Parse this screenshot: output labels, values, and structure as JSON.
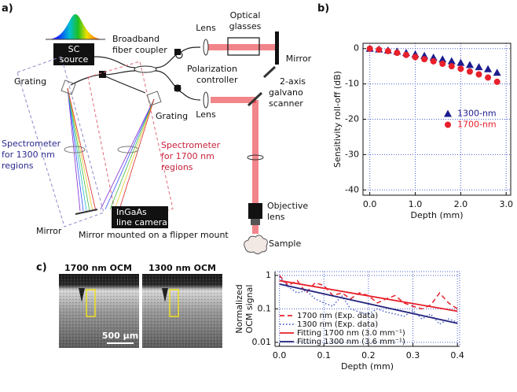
{
  "panels": [
    "a)",
    "b)",
    "c)"
  ],
  "diagram": {
    "sc_source": [
      "SC",
      "source"
    ],
    "coupler": [
      "Broadband",
      "fiber coupler"
    ],
    "lens_top": "Lens",
    "optical_glasses": [
      "Optical",
      "glasses"
    ],
    "mirror_ref": "Mirror",
    "polarization": [
      "Polarization",
      "controller"
    ],
    "lens_bottom": "Lens",
    "galvano": [
      "2-axis",
      "galvano",
      "scanner"
    ],
    "grating_left": "Grating",
    "grating_right": "Grating",
    "spec_1300": [
      "Spectrometer",
      "for 1300 nm",
      "regions"
    ],
    "spec_1700": [
      "Spectrometer",
      "for 1700 nm",
      "regions"
    ],
    "objective": [
      "Objective",
      "lens"
    ],
    "sample": "Sample",
    "camera": [
      "InGaAs",
      "line camera"
    ],
    "mirror_flip": "Mirror",
    "flipper": "Mirror mounted on a flipper mount"
  },
  "images": {
    "labels": [
      "1700 nm OCM",
      "1300 nm OCM"
    ],
    "scale_bar": "500 µm"
  },
  "chart_data": [
    {
      "type": "scatter",
      "xlabel": "Depth (mm)",
      "ylabel": "Sensitivity roll-off (dB)",
      "x": [
        0,
        0.2,
        0.4,
        0.6,
        0.8,
        1.0,
        1.2,
        1.4,
        1.6,
        1.8,
        2.0,
        2.2,
        2.4,
        2.6,
        2.8
      ],
      "series": [
        {
          "name": "1300-nm",
          "color": "#1c1c8e",
          "marker": "triangle",
          "values": [
            0,
            -0.2,
            -0.5,
            -0.8,
            -1.2,
            -1.6,
            -2,
            -2.5,
            -3,
            -3.5,
            -4,
            -4.6,
            -5.2,
            -5.8,
            -6.8
          ]
        },
        {
          "name": "1700-nm",
          "color": "#e8202a",
          "marker": "circle",
          "values": [
            0,
            -0.3,
            -0.7,
            -1.2,
            -1.8,
            -2.4,
            -3,
            -3.6,
            -4.3,
            -5,
            -5.7,
            -6.5,
            -7.3,
            -8.2,
            -9.4
          ]
        }
      ],
      "xlim": [
        -0.15,
        3.1
      ],
      "ylim": [
        -41.5,
        1.5
      ],
      "xticks": [
        {
          "value": 0,
          "label": "0.0"
        },
        {
          "value": 1,
          "label": "1.0"
        },
        {
          "value": 2,
          "label": "2.0"
        },
        {
          "value": 3,
          "label": "3.0"
        }
      ],
      "yticks": [
        0,
        -10,
        -20,
        -30,
        -40
      ],
      "grid": true,
      "legend": "center right"
    },
    {
      "type": "line",
      "xlabel": "Depth (mm)",
      "ylabel": [
        "Normalized",
        "OCM signal"
      ],
      "x": [
        0,
        0.02,
        0.04,
        0.06,
        0.08,
        0.1,
        0.12,
        0.14,
        0.16,
        0.18,
        0.2,
        0.22,
        0.24,
        0.26,
        0.28,
        0.3,
        0.32,
        0.34,
        0.36,
        0.38,
        0.4
      ],
      "series": [
        {
          "name": "1700 nm (Exp. data)",
          "color": "#e8202a",
          "dash": "dashed",
          "values": [
            1.0,
            0.5,
            0.7,
            0.3,
            0.6,
            0.5,
            0.25,
            0.3,
            0.2,
            0.3,
            0.25,
            0.15,
            0.2,
            0.25,
            0.15,
            0.12,
            0.1,
            0.13,
            0.3,
            0.15,
            0.1
          ]
        },
        {
          "name": "1300 nm (Exp. data)",
          "color": "#4a5fc8",
          "dash": "dotted",
          "values": [
            0.9,
            0.45,
            0.3,
            0.35,
            0.2,
            0.15,
            0.12,
            0.25,
            0.1,
            0.08,
            0.07,
            0.1,
            0.08,
            0.07,
            0.06,
            0.09,
            0.05,
            0.07,
            0.035,
            0.05,
            0.04
          ]
        },
        {
          "name": "Fitting 1700 nm (3.0 mm⁻¹)",
          "color": "#e8202a",
          "dash": "solid",
          "x": [
            0,
            0.4
          ],
          "values": [
            0.7,
            0.085
          ]
        },
        {
          "name": "Fitting 1300 nm (3.6 mm⁻¹)",
          "color": "#23237e",
          "dash": "solid",
          "x": [
            0,
            0.4
          ],
          "values": [
            0.55,
            0.037
          ]
        }
      ],
      "xlim": [
        -0.01,
        0.405
      ],
      "ylim": [
        0.0076,
        1.3
      ],
      "ylog": true,
      "xticks": [
        {
          "value": 0,
          "label": "0.0"
        },
        {
          "value": 0.1,
          "label": "0.1"
        },
        {
          "value": 0.2,
          "label": "0.2"
        },
        {
          "value": 0.3,
          "label": "0.3"
        },
        {
          "value": 0.4,
          "label": "0.4"
        }
      ],
      "yticks": [
        0.01,
        0.1,
        1
      ],
      "grid": true,
      "legend": "lower left"
    }
  ]
}
